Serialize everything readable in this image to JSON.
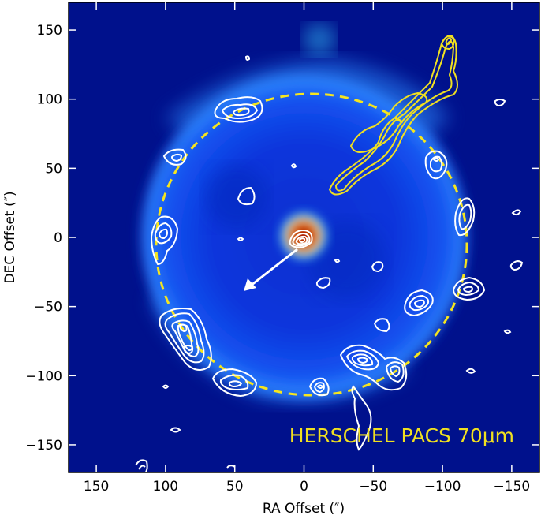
{
  "chart_data": {
    "type": "image",
    "annotation": "HERSCHEL PACS 70μm",
    "xlabel": "RA Offset (″)",
    "ylabel": "DEC Offset (″)",
    "xlim": [
      170,
      -170
    ],
    "ylim": [
      -170,
      170
    ],
    "xticks": [
      150,
      100,
      50,
      0,
      -50,
      -100,
      -150
    ],
    "yticks": [
      -150,
      -100,
      -50,
      0,
      50,
      100,
      150
    ],
    "ring_center": [
      5,
      -2
    ],
    "ring_radius": 106,
    "arrow_start": [
      0,
      0
    ],
    "arrow_end": [
      42,
      -38
    ],
    "colors": {
      "background": "#00108a",
      "shell": "#1e5cff",
      "annotation": "#f0e020",
      "ring": "#f5e51e",
      "contour": "#ffffff",
      "contour_yellow": "#f0e020"
    }
  }
}
